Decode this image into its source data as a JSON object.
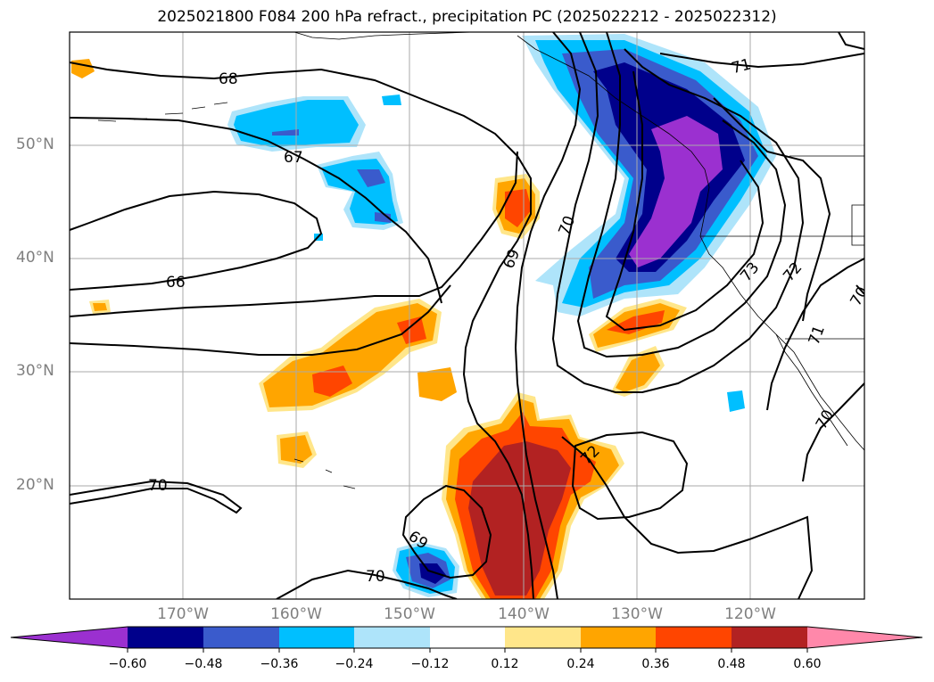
{
  "title": "2025021800 F084 200 hPa refract., precipitation PC (2025022212 - 2025022312)",
  "map": {
    "lat_labels": [
      "50°N",
      "40°N",
      "30°N",
      "20°N"
    ],
    "lon_labels": [
      "170°W",
      "160°W",
      "150°W",
      "140°W",
      "130°W",
      "120°W"
    ],
    "contour_labels": [
      "68",
      "67",
      "66",
      "69",
      "70",
      "71",
      "72",
      "73",
      "70",
      "69",
      "70",
      "72",
      "71",
      "70",
      "70",
      "70",
      "69"
    ],
    "grid": true
  },
  "colorbar": {
    "ticks": [
      "−0.60",
      "−0.48",
      "−0.36",
      "−0.24",
      "−0.12",
      "0.12",
      "0.24",
      "0.36",
      "0.48",
      "0.60"
    ],
    "colors": [
      "#9b30d0",
      "#00008b",
      "#3a5bcc",
      "#00bfff",
      "#aee4fa",
      "#ffffff",
      "#ffe68a",
      "#ffa500",
      "#ff4500",
      "#b22222",
      "#ff88aa"
    ]
  }
}
